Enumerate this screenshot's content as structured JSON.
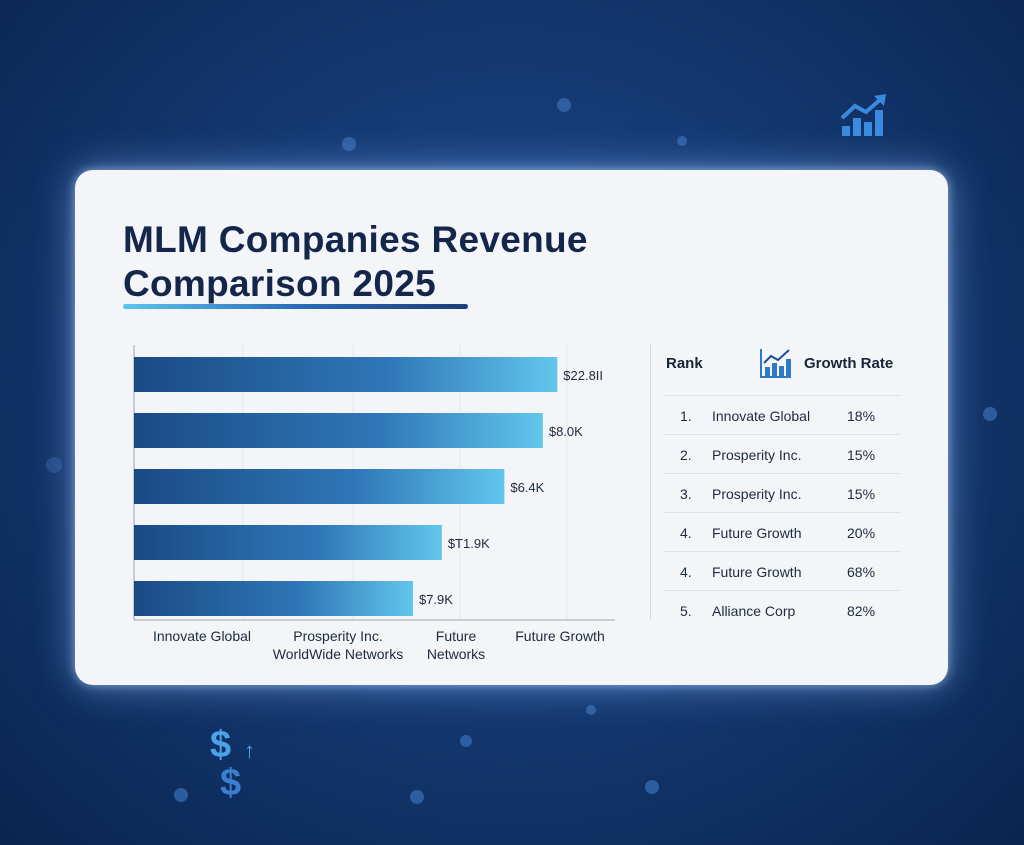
{
  "title_line1": "MLM Companies Revenue",
  "title_line2": "Comparison 2025",
  "colors": {
    "background": "#143a73",
    "bar_start": "#1a4a85",
    "bar_end": "#62c6ec",
    "title": "#14264a"
  },
  "chart_data": {
    "type": "bar",
    "orientation": "horizontal",
    "title": "MLM Companies Revenue Comparison 2025",
    "bars": [
      {
        "label": "$22.8II",
        "value_fraction": 0.88
      },
      {
        "label": "$8.0K",
        "value_fraction": 0.85
      },
      {
        "label": "$6.4K",
        "value_fraction": 0.77
      },
      {
        "label": "$T1.9K",
        "value_fraction": 0.64
      },
      {
        "label": "$7.9K",
        "value_fraction": 0.58
      }
    ],
    "x_tick_labels": [
      [
        "Innovate Global"
      ],
      [
        "Prosperity Inc.",
        "WorldWide Networks"
      ],
      [
        "Future",
        "Networks"
      ],
      [
        "Future Growth"
      ]
    ],
    "grid": true,
    "legend": "none"
  },
  "table": {
    "header_rank": "Rank",
    "header_growth": "Growth Rate",
    "header_icon": "bar-chart-growth-icon",
    "rows": [
      {
        "rank": "1.",
        "name": "Innovate Global",
        "rate": "18%"
      },
      {
        "rank": "2.",
        "name": "Prosperity Inc.",
        "rate": "15%"
      },
      {
        "rank": "3.",
        "name": "Prosperity Inc.",
        "rate": "15%"
      },
      {
        "rank": "4.",
        "name": "Future Growth",
        "rate": "20%"
      },
      {
        "rank": "4.",
        "name": "Future Growth",
        "rate": "68%"
      },
      {
        "rank": "5.",
        "name": "Alliance Corp",
        "rate": "82%"
      }
    ]
  },
  "decorations": {
    "top_right_icon": "growth-chart-icon",
    "bottom_left_icon": "dollar-up-icon",
    "dollar_glyph": "$",
    "arrow_glyph": "↑"
  }
}
